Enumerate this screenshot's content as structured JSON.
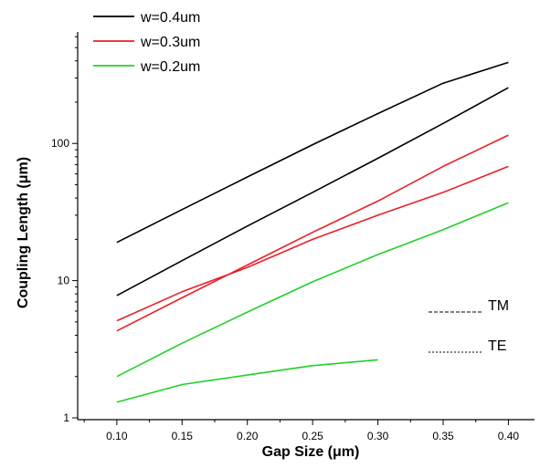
{
  "chart_data": {
    "type": "line",
    "title": "",
    "xlabel": "Gap Size (μm)",
    "ylabel": "Coupling Length (μm)",
    "x_scale": "linear",
    "y_scale": "log",
    "xlim": [
      0.07,
      0.42
    ],
    "ylim": [
      0.97,
      650
    ],
    "x_ticks": [
      "0.10",
      "0.15",
      "0.20",
      "0.25",
      "0.30",
      "0.35",
      "0.40"
    ],
    "y_ticks": [
      "1",
      "10",
      "100"
    ],
    "grid": false,
    "legend_position": "top-left",
    "legend": [
      {
        "label": "w=0.4um",
        "color": "#000000"
      },
      {
        "label": "w=0.3um",
        "color": "#e8202a"
      },
      {
        "label": "w=0.2um",
        "color": "#22d02a"
      }
    ],
    "polarization_legend": [
      {
        "label": "TM",
        "style": "dashed"
      },
      {
        "label": "TE",
        "style": "dotted"
      }
    ],
    "series": [
      {
        "width": "w=0.4um",
        "mode": "upper",
        "color": "#000000",
        "x": [
          0.1,
          0.15,
          0.2,
          0.25,
          0.3,
          0.35,
          0.4
        ],
        "y": [
          19,
          33,
          57,
          98,
          165,
          275,
          390
        ]
      },
      {
        "width": "w=0.4um",
        "mode": "lower",
        "color": "#000000",
        "x": [
          0.1,
          0.15,
          0.2,
          0.25,
          0.3,
          0.35,
          0.4
        ],
        "y": [
          7.8,
          14,
          25,
          44,
          78,
          140,
          255
        ]
      },
      {
        "width": "w=0.3um",
        "mode": "upper",
        "color": "#e8202a",
        "x": [
          0.1,
          0.15,
          0.2,
          0.25,
          0.3,
          0.35,
          0.4
        ],
        "y": [
          4.3,
          7.5,
          13,
          22.5,
          38,
          68,
          115
        ]
      },
      {
        "width": "w=0.3um",
        "mode": "lower",
        "color": "#e8202a",
        "x": [
          0.1,
          0.15,
          0.2,
          0.25,
          0.3,
          0.35,
          0.4
        ],
        "y": [
          5.1,
          8.3,
          12.5,
          20,
          30,
          44,
          68
        ]
      },
      {
        "width": "w=0.2um",
        "mode": "upper",
        "color": "#22d02a",
        "x": [
          0.1,
          0.15,
          0.2,
          0.25,
          0.3,
          0.35,
          0.4
        ],
        "y": [
          2.0,
          3.5,
          5.9,
          9.8,
          15.5,
          23.5,
          37
        ]
      },
      {
        "width": "w=0.2um",
        "mode": "lower",
        "color": "#22d02a",
        "x": [
          0.1,
          0.15,
          0.2,
          0.25,
          0.3
        ],
        "y": [
          1.3,
          1.75,
          2.05,
          2.4,
          2.65
        ]
      }
    ]
  }
}
